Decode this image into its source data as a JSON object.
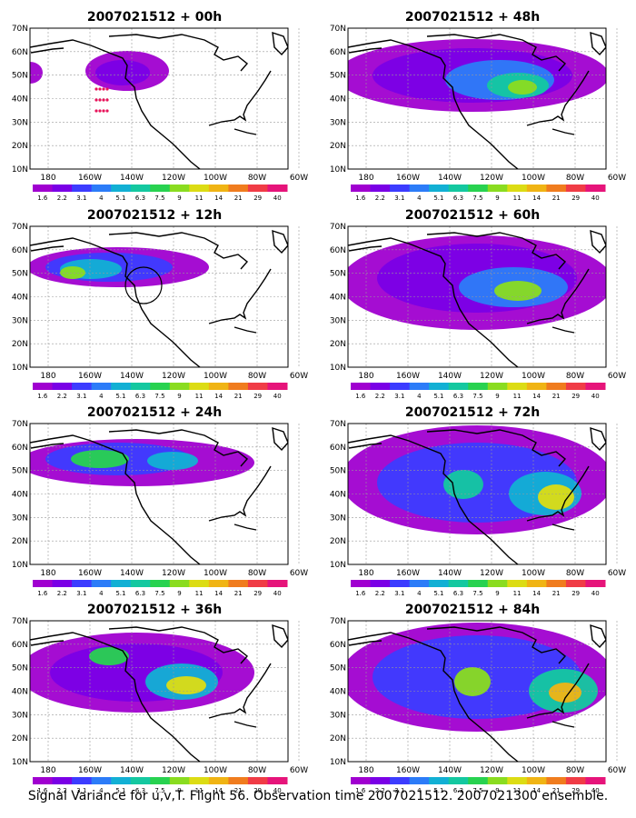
{
  "figure": {
    "caption": "Signal Variance for u,v,T. Flight 56. Observation time 2007021512. 2007021300 ensemble."
  },
  "map_axes": {
    "lat_labels": [
      "70N",
      "60N",
      "50N",
      "40N",
      "30N",
      "20N",
      "10N"
    ],
    "lon_labels": [
      "180",
      "160W",
      "140W",
      "120W",
      "100W",
      "80W",
      "60W"
    ]
  },
  "colorbar": {
    "labels": [
      "1.6",
      "2.2",
      "3.1",
      "4",
      "5.1",
      "6.3",
      "7.5",
      "9",
      "11",
      "14",
      "21",
      "29",
      "40"
    ],
    "colors": [
      "#a000d0",
      "#7a00e6",
      "#3c3cff",
      "#2c7cf8",
      "#12b0d4",
      "#14c8a0",
      "#28d250",
      "#8adc20",
      "#dcdc14",
      "#f0b414",
      "#f07c1e",
      "#f03c46",
      "#e6147a"
    ]
  },
  "panels": [
    {
      "title": "2007021512 + 00h"
    },
    {
      "title": "2007021512 + 48h"
    },
    {
      "title": "2007021512 + 12h"
    },
    {
      "title": "2007021512 + 60h"
    },
    {
      "title": "2007021512 + 24h"
    },
    {
      "title": "2007021512 + 72h"
    },
    {
      "title": "2007021512 + 36h"
    },
    {
      "title": "2007021512 + 84h"
    }
  ]
}
